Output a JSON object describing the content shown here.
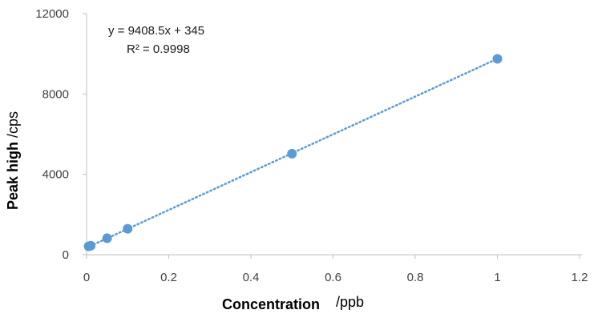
{
  "chart_data": {
    "type": "scatter",
    "series": [
      {
        "points": [
          {
            "x": 0.005,
            "y": 420
          },
          {
            "x": 0.01,
            "y": 450
          },
          {
            "x": 0.05,
            "y": 820
          },
          {
            "x": 0.1,
            "y": 1290
          },
          {
            "x": 0.5,
            "y": 5030
          },
          {
            "x": 1,
            "y": 9750
          }
        ],
        "color": "#5B9BD5"
      }
    ],
    "trendline": {
      "slope": 9408.5,
      "intercept": 345,
      "style": "dotted",
      "color": "#5B9BD5",
      "x_range": [
        0,
        1
      ]
    },
    "equation_label": "y = 9408.5x + 345",
    "r2_label": "R² = 0.9998",
    "xlabel": "Concentration",
    "xunit": "/ppb",
    "ylabel": "Peak high",
    "yunit": "/cps",
    "xlim": [
      0,
      1.2
    ],
    "ylim": [
      0,
      12000
    ],
    "xticks": [
      0,
      0.2,
      0.4,
      0.6,
      0.8,
      1,
      1.2
    ],
    "xtick_labels": [
      "0",
      "0.2",
      "0.4",
      "0.6",
      "0.8",
      "1",
      "1.2"
    ],
    "yticks": [
      0,
      4000,
      8000,
      12000
    ],
    "ytick_labels": [
      "0",
      "4000",
      "8000",
      "12000"
    ],
    "grid": false,
    "legend": "none"
  }
}
